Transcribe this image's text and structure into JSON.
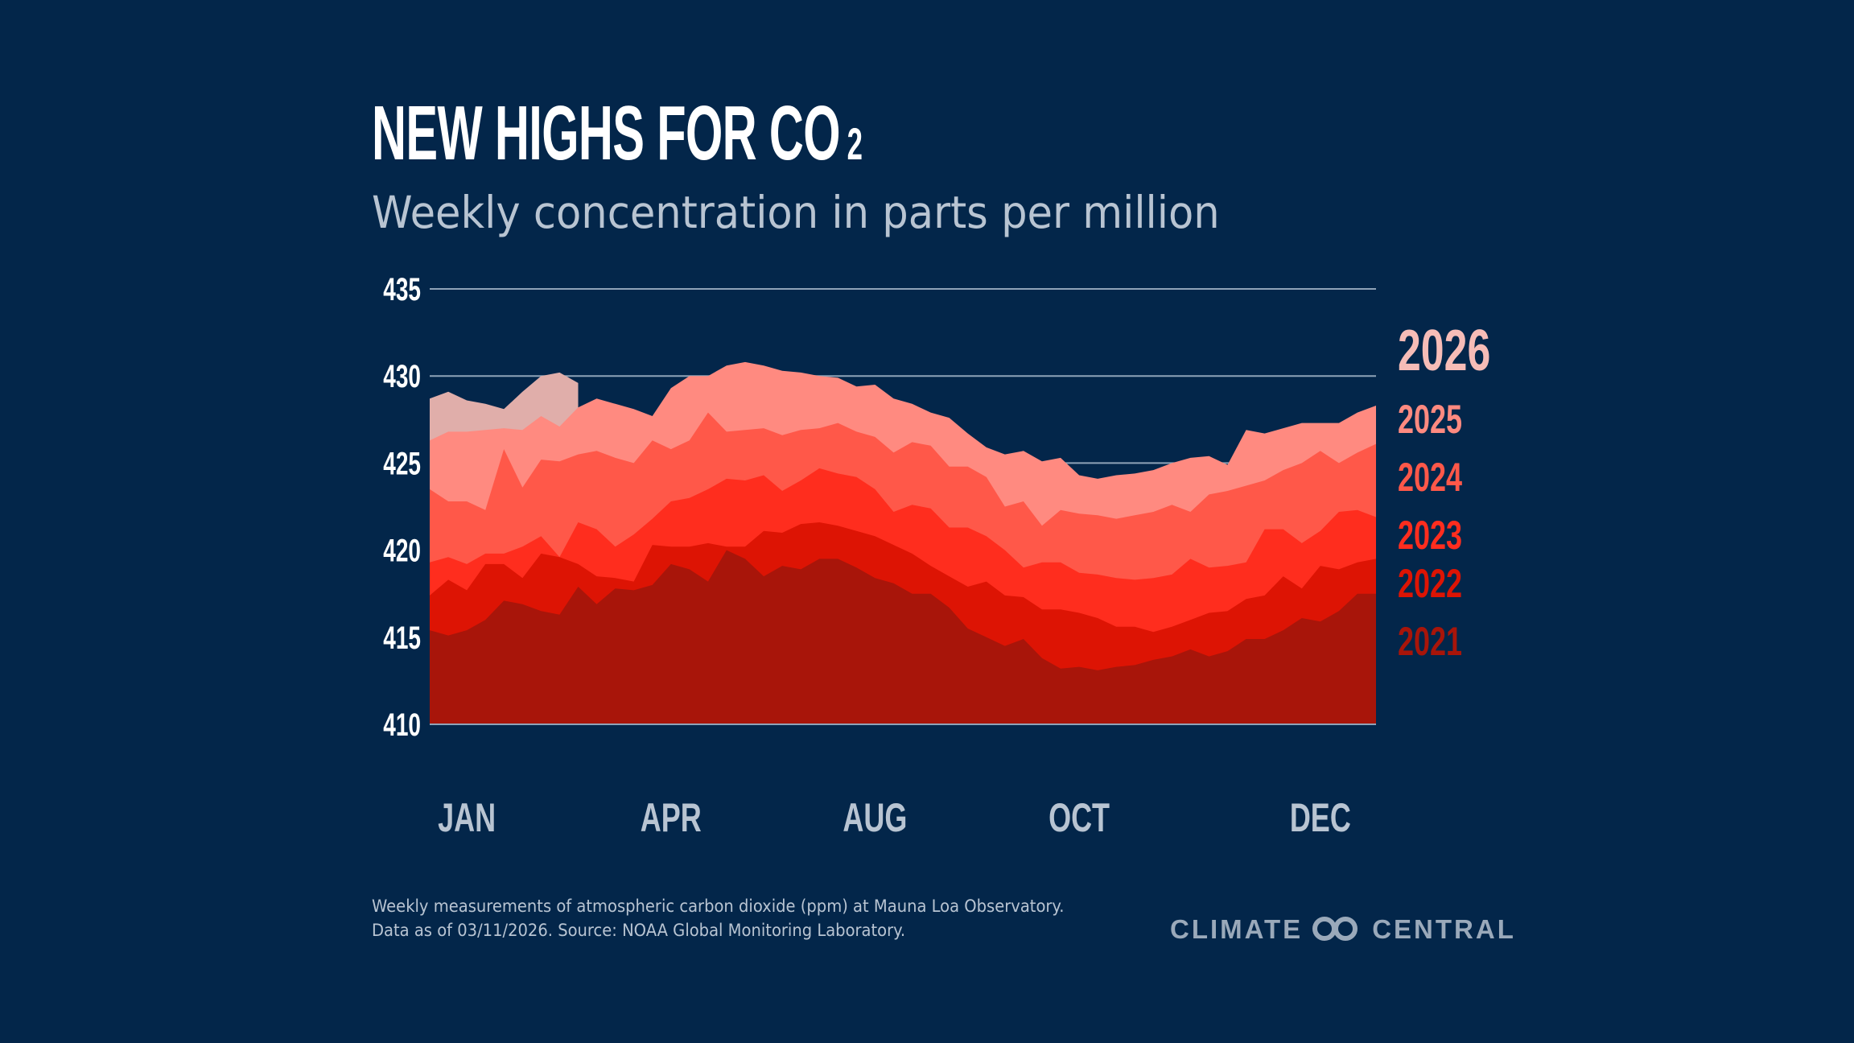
{
  "header": {
    "title": "NEW HIGHS FOR CO",
    "title_subscript": "2",
    "subtitle": "Weekly concentration in parts per million"
  },
  "footer": {
    "note_line1": "Weekly measurements of atmospheric carbon dioxide (ppm) at Mauna Loa Observatory.",
    "note_line2": "Data as of 03/11/2026. Source: NOAA Global Monitoring Laboratory.",
    "logo_text_left": "CLIMATE",
    "logo_text_right": "CENTRAL",
    "logo_icon": "linked-rings-icon"
  },
  "colors": {
    "background": "#03264a",
    "grid": "#8fa3b8",
    "axis_text": "#ffffff",
    "month_text": "#b8c4d2"
  },
  "chart_data": {
    "type": "area",
    "title": "NEW HIGHS FOR CO2",
    "subtitle": "Weekly concentration in parts per million",
    "xlabel": "",
    "ylabel": "",
    "ylim": [
      410,
      435
    ],
    "yticks": [
      "410",
      "415",
      "420",
      "425",
      "430",
      "435"
    ],
    "xticks": [
      {
        "label": "JAN",
        "week": 2
      },
      {
        "label": "APR",
        "week": 13
      },
      {
        "label": "AUG",
        "week": 24
      },
      {
        "label": "OCT",
        "week": 35
      },
      {
        "label": "DEC",
        "week": 48
      }
    ],
    "grid": true,
    "legend": "right",
    "series": [
      {
        "name": "2026",
        "color": "#e0aeaa",
        "label_color": "#f6bcb7",
        "values": [
          428.7,
          429.1,
          428.6,
          428.4,
          428.1,
          429.1,
          430.0,
          430.2,
          429.6
        ]
      },
      {
        "name": "2025",
        "color": "#ff8a80",
        "label_color": "#ff8a80",
        "values": [
          426.3,
          426.8,
          426.8,
          426.9,
          427.0,
          426.9,
          427.7,
          427.1,
          428.2,
          428.7,
          428.4,
          428.1,
          427.7,
          429.3,
          430.0,
          430.0,
          430.6,
          430.8,
          430.6,
          430.3,
          430.2,
          430.0,
          429.9,
          429.4,
          429.5,
          428.7,
          428.4,
          427.9,
          427.6,
          426.7,
          425.9,
          425.5,
          425.7,
          425.1,
          425.3,
          424.3,
          424.1,
          424.3,
          424.4,
          424.6,
          425.0,
          425.3,
          425.4,
          424.9,
          426.9,
          426.7,
          427.0,
          427.3,
          427.3,
          427.3,
          427.9,
          428.3
        ]
      },
      {
        "name": "2024",
        "color": "#ff5849",
        "label_color": "#ff5849",
        "values": [
          423.5,
          422.8,
          422.8,
          422.3,
          425.8,
          423.6,
          425.2,
          425.1,
          425.5,
          425.7,
          425.3,
          425.0,
          426.3,
          425.8,
          426.3,
          427.9,
          426.8,
          426.9,
          427.0,
          426.6,
          426.9,
          427.0,
          427.3,
          426.8,
          426.5,
          425.6,
          426.2,
          426.0,
          424.8,
          424.8,
          424.2,
          422.5,
          422.8,
          421.4,
          422.3,
          422.1,
          422.0,
          421.8,
          422.0,
          422.2,
          422.6,
          422.2,
          423.2,
          423.4,
          423.7,
          424.0,
          424.6,
          425.0,
          425.7,
          425.0,
          425.6,
          426.1
        ]
      },
      {
        "name": "2023",
        "color": "#ff2d1e",
        "label_color": "#ff2d1e",
        "values": [
          419.3,
          419.6,
          419.2,
          419.8,
          419.8,
          420.2,
          420.8,
          419.6,
          421.6,
          421.2,
          420.2,
          420.9,
          421.8,
          422.8,
          423.0,
          423.5,
          424.1,
          424.0,
          424.3,
          423.4,
          424.0,
          424.7,
          424.4,
          424.2,
          423.5,
          422.2,
          422.6,
          422.4,
          421.3,
          421.3,
          420.8,
          420.0,
          419.0,
          419.3,
          419.3,
          418.7,
          418.6,
          418.4,
          418.3,
          418.4,
          418.6,
          419.5,
          419.0,
          419.1,
          419.3,
          421.2,
          421.2,
          420.4,
          421.1,
          422.2,
          422.3,
          421.9
        ]
      },
      {
        "name": "2022",
        "color": "#dd1404",
        "label_color": "#dd1404",
        "values": [
          417.4,
          418.3,
          417.7,
          419.2,
          419.2,
          418.4,
          419.8,
          419.6,
          419.2,
          418.5,
          418.4,
          418.2,
          420.3,
          420.2,
          420.2,
          420.4,
          420.2,
          420.2,
          421.1,
          421.0,
          421.5,
          421.6,
          421.4,
          421.1,
          420.8,
          420.3,
          419.8,
          419.1,
          418.5,
          417.9,
          418.2,
          417.4,
          417.3,
          416.6,
          416.6,
          416.4,
          416.1,
          415.6,
          415.6,
          415.3,
          415.6,
          416.0,
          416.4,
          416.5,
          417.2,
          417.4,
          418.5,
          417.8,
          419.1,
          418.9,
          419.3,
          419.5
        ]
      },
      {
        "name": "2021",
        "color": "#a8150a",
        "label_color": "#a8150a",
        "values": [
          415.4,
          415.1,
          415.4,
          416.0,
          417.1,
          416.9,
          416.5,
          416.3,
          417.9,
          416.9,
          417.8,
          417.7,
          418.0,
          419.2,
          418.9,
          418.2,
          420.0,
          419.5,
          418.5,
          419.1,
          418.9,
          419.5,
          419.5,
          419.0,
          418.4,
          418.1,
          417.5,
          417.5,
          416.7,
          415.5,
          415.0,
          414.5,
          414.9,
          413.8,
          413.2,
          413.3,
          413.1,
          413.3,
          413.4,
          413.7,
          413.9,
          414.3,
          413.9,
          414.2,
          414.9,
          414.9,
          415.4,
          416.1,
          415.9,
          416.5,
          417.5,
          417.5
        ]
      }
    ]
  }
}
